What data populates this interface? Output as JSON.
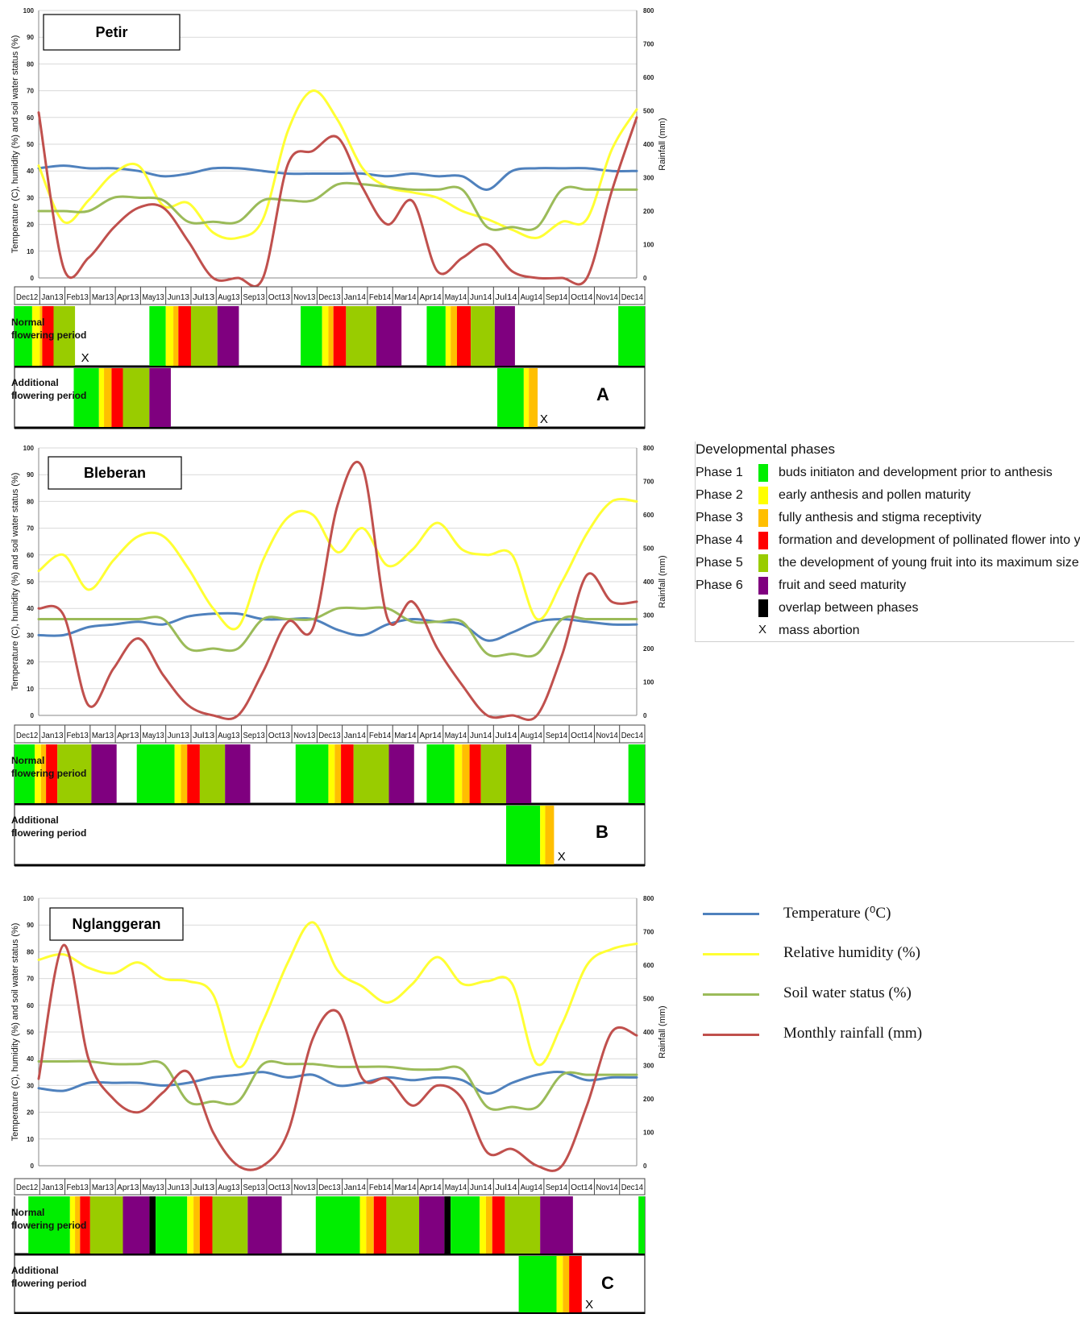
{
  "months": [
    "Dec12",
    "Jan13",
    "Feb13",
    "Mar13",
    "Apr13",
    "May13",
    "Jun13",
    "Jul13",
    "Aug13",
    "Sep13",
    "Oct13",
    "Nov13",
    "Dec13",
    "Jan14",
    "Feb14",
    "Mar14",
    "Apr14",
    "May14",
    "Jun14",
    "Jul14",
    "Aug14",
    "Sep14",
    "Oct14",
    "Nov14",
    "Dec14"
  ],
  "axes": {
    "ylabel_left": "Temperature (C), humidity (%) and soil water status (%)",
    "ylabel_right": "Rainfall (mm)",
    "left_ticks": [
      "0",
      "10",
      "20",
      "30",
      "40",
      "50",
      "60",
      "70",
      "80",
      "90",
      "100"
    ],
    "right_ticks": [
      "0",
      "100",
      "200",
      "300",
      "400",
      "500",
      "600",
      "700",
      "800"
    ]
  },
  "panel_labels": {
    "normal": "Normal flowering period",
    "additional": "Additional flowering period"
  },
  "phase_legend": {
    "title": "Developmental phases",
    "items": [
      {
        "phase": "Phase 1",
        "color": "#00ee00",
        "desc": "buds initiaton and development prior to anthesis"
      },
      {
        "phase": "Phase 2",
        "color": "#ffff00",
        "desc": "early anthesis and pollen maturity"
      },
      {
        "phase": "Phase 3",
        "color": "#ffbf00",
        "desc": "fully anthesis and stigma receptivity"
      },
      {
        "phase": "Phase 4",
        "color": "#ff0000",
        "desc": "formation and development of pollinated flower into young fruit"
      },
      {
        "phase": "Phase 5",
        "color": "#99cc00",
        "desc": "the development of young fruit into its maximum size"
      },
      {
        "phase": "Phase 6",
        "color": "#7f007f",
        "desc": "fruit and seed maturity"
      },
      {
        "phase": "",
        "color": "#000000",
        "desc": "overlap between phases"
      }
    ],
    "abortion": {
      "symbol": "X",
      "desc": "mass abortion"
    }
  },
  "series_legend": [
    {
      "label": "Temperature (⁰C)",
      "color": "#4f81bd"
    },
    {
      "label": "Relative humidity (%)",
      "color": "#ffff33"
    },
    {
      "label": "Soil water status (%)",
      "color": "#9bbb59"
    },
    {
      "label": "Monthly rainfall (mm)",
      "color": "#c0504d"
    }
  ],
  "chart_data": [
    {
      "type": "line",
      "title": "Petir",
      "panel_letter": "A",
      "ylim": [
        0,
        100
      ],
      "y2lim": [
        0,
        800
      ],
      "series": [
        {
          "name": "Temperature (⁰C)",
          "axis": "left",
          "values": [
            41,
            42,
            41,
            41,
            40,
            38,
            39,
            41,
            41,
            40,
            39,
            39,
            39,
            39,
            38,
            39,
            38,
            38,
            33,
            40,
            41,
            41,
            41,
            40,
            40
          ]
        },
        {
          "name": "Relative humidity (%)",
          "axis": "left",
          "values": [
            42,
            21,
            29,
            39,
            42,
            27,
            28,
            17,
            15,
            22,
            55,
            70,
            59,
            41,
            34,
            32,
            30,
            25,
            22,
            18,
            15,
            21,
            22,
            48,
            63
          ]
        },
        {
          "name": "Soil water status (%)",
          "axis": "left",
          "values": [
            25,
            25,
            25,
            30,
            30,
            29,
            21,
            21,
            21,
            29,
            29,
            29,
            35,
            35,
            34,
            33,
            33,
            33,
            19,
            19,
            19,
            33,
            33,
            33,
            33
          ]
        },
        {
          "name": "Monthly rainfall (mm)",
          "axis": "right",
          "values": [
            495,
            30,
            60,
            150,
            210,
            210,
            110,
            0,
            0,
            0,
            340,
            380,
            420,
            270,
            160,
            230,
            20,
            60,
            100,
            20,
            0,
            0,
            0,
            260,
            480
          ]
        }
      ],
      "normal_flowering": [
        {
          "s": 0.0,
          "e": 0.7,
          "c": "#00ee00"
        },
        {
          "s": 0.7,
          "e": 1.0,
          "c": "#ffff00"
        },
        {
          "s": 1.0,
          "e": 1.1,
          "c": "#ffbf00"
        },
        {
          "s": 1.1,
          "e": 1.55,
          "c": "#ff0000"
        },
        {
          "s": 1.55,
          "e": 2.4,
          "c": "#99cc00"
        },
        {
          "s": 5.35,
          "e": 6.0,
          "c": "#00ee00"
        },
        {
          "s": 6.0,
          "e": 6.3,
          "c": "#ffff00"
        },
        {
          "s": 6.3,
          "e": 6.5,
          "c": "#ffbf00"
        },
        {
          "s": 6.5,
          "e": 7.0,
          "c": "#ff0000"
        },
        {
          "s": 7.0,
          "e": 8.05,
          "c": "#99cc00"
        },
        {
          "s": 8.05,
          "e": 8.9,
          "c": "#7f007f"
        },
        {
          "s": 11.35,
          "e": 12.2,
          "c": "#00ee00"
        },
        {
          "s": 12.2,
          "e": 12.45,
          "c": "#ffff00"
        },
        {
          "s": 12.45,
          "e": 12.65,
          "c": "#ffbf00"
        },
        {
          "s": 12.65,
          "e": 13.15,
          "c": "#ff0000"
        },
        {
          "s": 13.15,
          "e": 14.35,
          "c": "#99cc00"
        },
        {
          "s": 14.35,
          "e": 15.35,
          "c": "#7f007f"
        },
        {
          "s": 16.35,
          "e": 17.1,
          "c": "#00ee00"
        },
        {
          "s": 17.1,
          "e": 17.3,
          "c": "#ffff00"
        },
        {
          "s": 17.3,
          "e": 17.55,
          "c": "#ffbf00"
        },
        {
          "s": 17.55,
          "e": 18.1,
          "c": "#ff0000"
        },
        {
          "s": 18.1,
          "e": 19.05,
          "c": "#99cc00"
        },
        {
          "s": 19.05,
          "e": 19.85,
          "c": "#7f007f"
        },
        {
          "s": 23.95,
          "e": 25.0,
          "c": "#00ee00"
        }
      ],
      "normal_abortion": [
        2.8
      ],
      "additional_flowering": [
        {
          "s": 2.35,
          "e": 3.35,
          "c": "#00ee00"
        },
        {
          "s": 3.35,
          "e": 3.55,
          "c": "#ffff00"
        },
        {
          "s": 3.55,
          "e": 3.85,
          "c": "#ffbf00"
        },
        {
          "s": 3.85,
          "e": 4.3,
          "c": "#ff0000"
        },
        {
          "s": 4.3,
          "e": 5.35,
          "c": "#99cc00"
        },
        {
          "s": 5.35,
          "e": 6.2,
          "c": "#7f007f"
        },
        {
          "s": 19.15,
          "e": 20.2,
          "c": "#00ee00"
        },
        {
          "s": 20.2,
          "e": 20.4,
          "c": "#ffff00"
        },
        {
          "s": 20.4,
          "e": 20.75,
          "c": "#ffbf00"
        }
      ],
      "additional_abortion": [
        21.0
      ]
    },
    {
      "type": "line",
      "title": "Bleberan",
      "panel_letter": "B",
      "ylim": [
        0,
        100
      ],
      "y2lim": [
        0,
        800
      ],
      "series": [
        {
          "name": "Temperature (⁰C)",
          "axis": "left",
          "values": [
            30,
            30,
            33,
            34,
            35,
            34,
            37,
            38,
            38,
            36,
            36,
            36,
            32,
            30,
            34,
            36,
            35,
            34,
            28,
            31,
            35,
            36,
            35,
            34,
            34
          ]
        },
        {
          "name": "Relative humidity (%)",
          "axis": "left",
          "values": [
            54,
            60,
            47,
            58,
            67,
            67,
            55,
            40,
            33,
            58,
            74,
            75,
            61,
            70,
            56,
            62,
            72,
            62,
            60,
            60,
            36,
            50,
            68,
            80,
            80
          ]
        },
        {
          "name": "Soil water status (%)",
          "axis": "left",
          "values": [
            36,
            36,
            36,
            36,
            36,
            36,
            25,
            25,
            25,
            36,
            36,
            36,
            40,
            40,
            40,
            35,
            35,
            35,
            23,
            23,
            23,
            36,
            36,
            36,
            36
          ]
        },
        {
          "name": "Monthly rainfall (mm)",
          "axis": "right",
          "values": [
            320,
            300,
            30,
            140,
            230,
            120,
            30,
            0,
            0,
            130,
            280,
            260,
            630,
            740,
            290,
            340,
            200,
            90,
            0,
            0,
            0,
            180,
            420,
            340,
            340
          ]
        }
      ],
      "normal_flowering": [
        {
          "s": 0.0,
          "e": 0.8,
          "c": "#00ee00"
        },
        {
          "s": 0.8,
          "e": 1.05,
          "c": "#ffff00"
        },
        {
          "s": 1.05,
          "e": 1.25,
          "c": "#ffbf00"
        },
        {
          "s": 1.25,
          "e": 1.7,
          "c": "#ff0000"
        },
        {
          "s": 1.7,
          "e": 3.05,
          "c": "#99cc00"
        },
        {
          "s": 3.05,
          "e": 4.05,
          "c": "#7f007f"
        },
        {
          "s": 4.85,
          "e": 6.35,
          "c": "#00ee00"
        },
        {
          "s": 6.35,
          "e": 6.6,
          "c": "#ffff00"
        },
        {
          "s": 6.6,
          "e": 6.85,
          "c": "#ffbf00"
        },
        {
          "s": 6.85,
          "e": 7.35,
          "c": "#ff0000"
        },
        {
          "s": 7.35,
          "e": 8.35,
          "c": "#99cc00"
        },
        {
          "s": 8.35,
          "e": 9.35,
          "c": "#7f007f"
        },
        {
          "s": 11.15,
          "e": 12.45,
          "c": "#00ee00"
        },
        {
          "s": 12.45,
          "e": 12.7,
          "c": "#ffff00"
        },
        {
          "s": 12.7,
          "e": 12.95,
          "c": "#ffbf00"
        },
        {
          "s": 12.95,
          "e": 13.45,
          "c": "#ff0000"
        },
        {
          "s": 13.45,
          "e": 14.85,
          "c": "#99cc00"
        },
        {
          "s": 14.85,
          "e": 15.85,
          "c": "#7f007f"
        },
        {
          "s": 16.35,
          "e": 17.45,
          "c": "#00ee00"
        },
        {
          "s": 17.45,
          "e": 17.75,
          "c": "#ffff00"
        },
        {
          "s": 17.75,
          "e": 18.05,
          "c": "#ffbf00"
        },
        {
          "s": 18.05,
          "e": 18.5,
          "c": "#ff0000"
        },
        {
          "s": 18.5,
          "e": 19.5,
          "c": "#99cc00"
        },
        {
          "s": 19.5,
          "e": 20.5,
          "c": "#7f007f"
        },
        {
          "s": 24.35,
          "e": 25.0,
          "c": "#00ee00"
        }
      ],
      "normal_abortion": [],
      "additional_flowering": [
        {
          "s": 19.5,
          "e": 20.85,
          "c": "#00ee00"
        },
        {
          "s": 20.85,
          "e": 21.05,
          "c": "#ffff00"
        },
        {
          "s": 21.05,
          "e": 21.4,
          "c": "#ffbf00"
        }
      ],
      "additional_abortion": [
        21.7
      ]
    },
    {
      "type": "line",
      "title": "Nglanggeran",
      "panel_letter": "C",
      "ylim": [
        0,
        100
      ],
      "y2lim": [
        0,
        800
      ],
      "series": [
        {
          "name": "Temperature (⁰C)",
          "axis": "left",
          "values": [
            29,
            28,
            31,
            31,
            31,
            30,
            31,
            33,
            34,
            35,
            33,
            34,
            30,
            31,
            33,
            32,
            33,
            32,
            27,
            31,
            34,
            35,
            32,
            33,
            33
          ]
        },
        {
          "name": "Relative humidity (%)",
          "axis": "left",
          "values": [
            77,
            79,
            74,
            72,
            76,
            70,
            69,
            64,
            37,
            54,
            76,
            91,
            73,
            67,
            61,
            68,
            78,
            68,
            69,
            68,
            38,
            53,
            75,
            81,
            83
          ]
        },
        {
          "name": "Soil water status (%)",
          "axis": "left",
          "values": [
            39,
            39,
            39,
            38,
            38,
            38,
            24,
            24,
            24,
            38,
            38,
            38,
            37,
            37,
            37,
            36,
            36,
            36,
            22,
            22,
            22,
            34,
            34,
            34,
            34
          ]
        },
        {
          "name": "Monthly rainfall (mm)",
          "axis": "right",
          "values": [
            260,
            660,
            320,
            200,
            160,
            220,
            280,
            100,
            0,
            0,
            100,
            380,
            460,
            260,
            260,
            180,
            240,
            200,
            40,
            50,
            0,
            0,
            180,
            400,
            390
          ]
        }
      ],
      "normal_flowering": [
        {
          "s": 0.55,
          "e": 2.2,
          "c": "#00ee00"
        },
        {
          "s": 2.2,
          "e": 2.4,
          "c": "#ffff00"
        },
        {
          "s": 2.4,
          "e": 2.6,
          "c": "#ffbf00"
        },
        {
          "s": 2.6,
          "e": 3.0,
          "c": "#ff0000"
        },
        {
          "s": 3.0,
          "e": 4.3,
          "c": "#99cc00"
        },
        {
          "s": 4.3,
          "e": 5.35,
          "c": "#7f007f"
        },
        {
          "s": 5.35,
          "e": 5.6,
          "c": "#000000"
        },
        {
          "s": 5.6,
          "e": 6.85,
          "c": "#00ee00"
        },
        {
          "s": 6.85,
          "e": 7.1,
          "c": "#ffff00"
        },
        {
          "s": 7.1,
          "e": 7.35,
          "c": "#ffbf00"
        },
        {
          "s": 7.35,
          "e": 7.85,
          "c": "#ff0000"
        },
        {
          "s": 7.85,
          "e": 9.25,
          "c": "#99cc00"
        },
        {
          "s": 9.25,
          "e": 10.6,
          "c": "#7f007f"
        },
        {
          "s": 11.95,
          "e": 13.7,
          "c": "#00ee00"
        },
        {
          "s": 13.7,
          "e": 13.95,
          "c": "#ffff00"
        },
        {
          "s": 13.95,
          "e": 14.25,
          "c": "#ffbf00"
        },
        {
          "s": 14.25,
          "e": 14.75,
          "c": "#ff0000"
        },
        {
          "s": 14.75,
          "e": 16.05,
          "c": "#99cc00"
        },
        {
          "s": 16.05,
          "e": 17.05,
          "c": "#7f007f"
        },
        {
          "s": 17.05,
          "e": 17.3,
          "c": "#000000"
        },
        {
          "s": 17.3,
          "e": 18.45,
          "c": "#00ee00"
        },
        {
          "s": 18.45,
          "e": 18.7,
          "c": "#ffff00"
        },
        {
          "s": 18.7,
          "e": 18.95,
          "c": "#ffbf00"
        },
        {
          "s": 18.95,
          "e": 19.45,
          "c": "#ff0000"
        },
        {
          "s": 19.45,
          "e": 20.85,
          "c": "#99cc00"
        },
        {
          "s": 20.85,
          "e": 22.15,
          "c": "#7f007f"
        },
        {
          "s": 24.75,
          "e": 25.0,
          "c": "#00ee00"
        }
      ],
      "normal_abortion": [],
      "additional_flowering": [
        {
          "s": 20.0,
          "e": 21.5,
          "c": "#00ee00"
        },
        {
          "s": 21.5,
          "e": 21.75,
          "c": "#ffff00"
        },
        {
          "s": 21.75,
          "e": 22.0,
          "c": "#ffbf00"
        },
        {
          "s": 22.0,
          "e": 22.5,
          "c": "#ff0000"
        }
      ],
      "additional_abortion": [
        22.8
      ]
    }
  ]
}
